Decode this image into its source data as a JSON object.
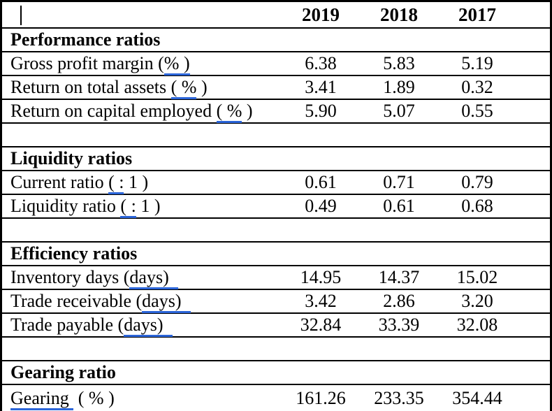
{
  "colors": {
    "underline": "#2b65d9",
    "border": "#000000",
    "text": "#000000"
  },
  "header": {
    "years": [
      "2019",
      "2018",
      "2017"
    ]
  },
  "sections": [
    {
      "title": "Performance ratios",
      "rows": [
        {
          "pre": "Gross profit margin (",
          "underlined": "% )",
          "post": "",
          "values": [
            "6.38",
            "5.83",
            "5.19"
          ]
        },
        {
          "pre": "Return on total assets ",
          "underlined": "( %",
          "post": " )",
          "values": [
            "3.41",
            "1.89",
            "0.32"
          ]
        },
        {
          "pre": "Return on capital employed ",
          "underlined": "( %",
          "post": " )",
          "values": [
            "5.90",
            "5.07",
            "0.55"
          ]
        }
      ]
    },
    {
      "title": "Liquidity ratios",
      "rows": [
        {
          "pre": "Current ratio ",
          "underlined": "( :",
          "post": " 1 )",
          "values": [
            "0.61",
            "0.71",
            "0.79"
          ]
        },
        {
          "pre": "Liquidity ratio ",
          "underlined": "( :",
          "post": " 1 )",
          "values": [
            "0.49",
            "0.61",
            "0.68"
          ]
        }
      ]
    },
    {
      "title": "Efficiency ratios",
      "rows": [
        {
          "pre": "Inventory days (",
          "underlined": "days)  ",
          "post": "",
          "values": [
            "14.95",
            "14.37",
            "15.02"
          ]
        },
        {
          "pre": "Trade receivable (",
          "underlined": "days)  ",
          "post": "",
          "values": [
            "3.42",
            "2.86",
            "3.20"
          ]
        },
        {
          "pre": "Trade payable (",
          "underlined": "days)  ",
          "post": "",
          "values": [
            "32.84",
            "33.39",
            "32.08"
          ]
        }
      ]
    },
    {
      "title": "Gearing ratio",
      "rows": [
        {
          "pre": "",
          "underlined": "Gearing ",
          "post": " ( % )",
          "values": [
            "161.26",
            "233.35",
            "354.44"
          ]
        }
      ]
    }
  ]
}
